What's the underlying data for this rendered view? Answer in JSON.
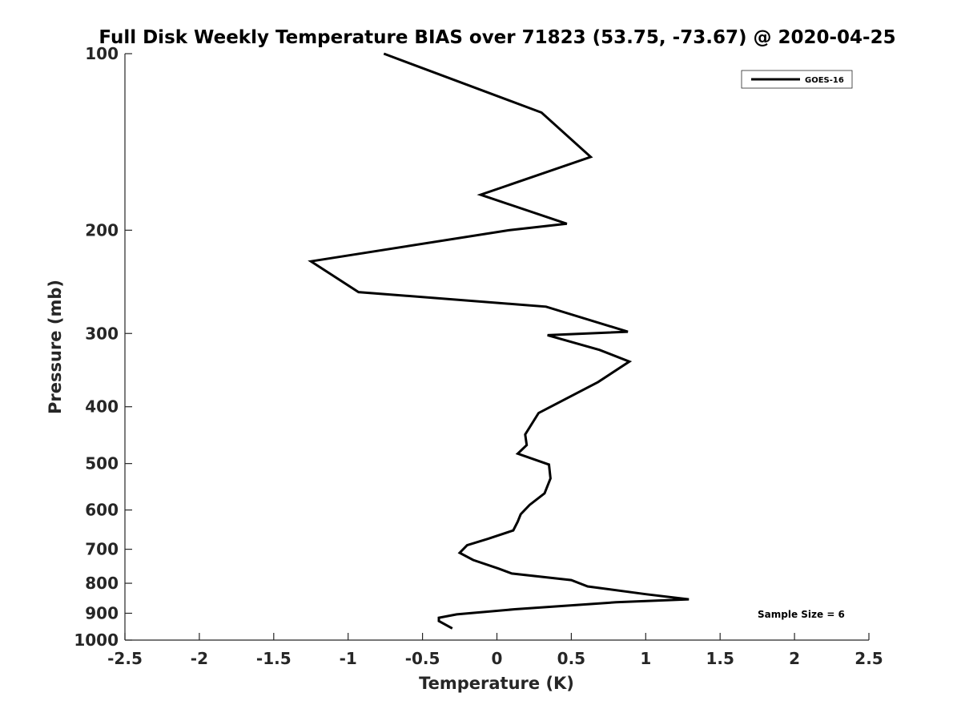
{
  "chart_data": {
    "type": "line",
    "title": "Full Disk Weekly Temperature BIAS over 71823 (53.75, -73.67) @ 2020-04-25",
    "xlabel": "Temperature (K)",
    "ylabel": "Pressure (mb)",
    "xlim": [
      -2.5,
      2.5
    ],
    "ylim": [
      100,
      1000
    ],
    "y_scale": "log",
    "y_direction": "reversed",
    "grid": false,
    "legend_position": "top-right",
    "x_ticks": [
      "-2.5",
      "-2",
      "-1.5",
      "-1",
      "-0.5",
      "0",
      "0.5",
      "1",
      "1.5",
      "2",
      "2.5"
    ],
    "y_ticks": [
      "100",
      "200",
      "300",
      "400",
      "500",
      "600",
      "700",
      "800",
      "900",
      "1000"
    ],
    "annotation": "Sample Size = 6",
    "line_color": "#000000",
    "series": [
      {
        "name": "GOES-16",
        "x": [
          -0.76,
          0.3,
          0.63,
          -0.11,
          0.47,
          0.08,
          -1.25,
          -0.93,
          0.33,
          0.88,
          0.34,
          0.69,
          0.89,
          0.68,
          0.28,
          0.19,
          0.2,
          0.14,
          0.35,
          0.36,
          0.32,
          0.22,
          0.16,
          0.14,
          0.11,
          -0.06,
          -0.2,
          -0.25,
          -0.16,
          0.01,
          0.1,
          0.5,
          0.61,
          1.0,
          1.29,
          0.8,
          0.12,
          -0.27,
          -0.39,
          -0.39,
          -0.3
        ],
        "y": [
          100,
          126,
          150,
          174,
          195,
          200,
          226,
          255,
          270,
          298,
          302,
          320,
          335,
          363,
          410,
          446,
          465,
          481,
          502,
          530,
          562,
          588,
          610,
          628,
          650,
          672,
          689,
          710,
          730,
          755,
          770,
          790,
          810,
          835,
          852,
          862,
          886,
          904,
          916,
          928,
          955
        ]
      }
    ]
  }
}
